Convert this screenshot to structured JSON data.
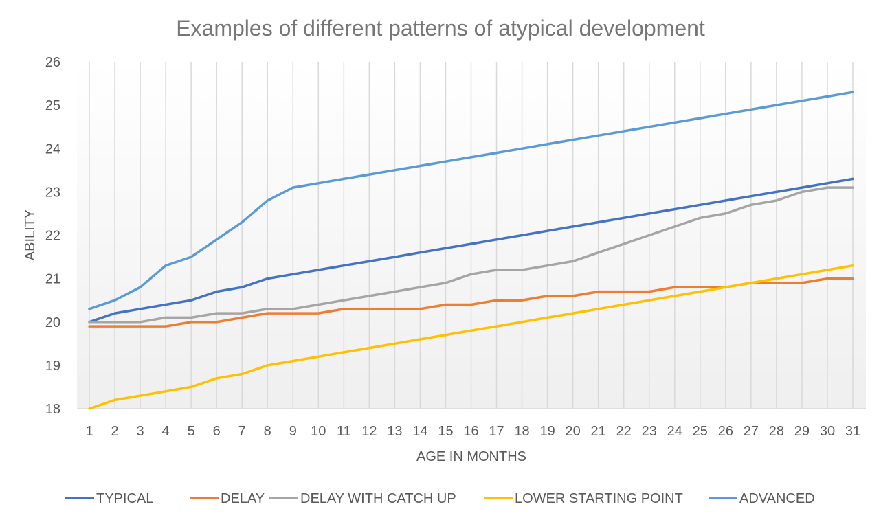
{
  "chart_data": {
    "type": "line",
    "title": "Examples of different patterns of atypical  development",
    "xlabel": "AGE IN MONTHS",
    "ylabel": "ABILITY",
    "ylim": [
      18,
      26
    ],
    "yticks": [
      18,
      19,
      20,
      21,
      22,
      23,
      24,
      25,
      26
    ],
    "x": [
      1,
      2,
      3,
      4,
      5,
      6,
      7,
      8,
      9,
      10,
      11,
      12,
      13,
      14,
      15,
      16,
      17,
      18,
      19,
      20,
      21,
      22,
      23,
      24,
      25,
      26,
      27,
      28,
      29,
      30,
      31
    ],
    "grid": "vertical",
    "legend_position": "bottom",
    "series": [
      {
        "name": "TYPICAL",
        "color": "#4472C4",
        "values": [
          20.0,
          20.2,
          20.3,
          20.4,
          20.5,
          20.7,
          20.8,
          21.0,
          21.1,
          21.2,
          21.3,
          21.4,
          21.5,
          21.6,
          21.7,
          21.8,
          21.9,
          22.0,
          22.1,
          22.2,
          22.3,
          22.4,
          22.5,
          22.6,
          22.7,
          22.8,
          22.9,
          23.0,
          23.1,
          23.2,
          23.3
        ]
      },
      {
        "name": "DELAY",
        "color": "#ED7D31",
        "values": [
          19.9,
          19.9,
          19.9,
          19.9,
          20.0,
          20.0,
          20.1,
          20.2,
          20.2,
          20.2,
          20.3,
          20.3,
          20.3,
          20.3,
          20.4,
          20.4,
          20.5,
          20.5,
          20.6,
          20.6,
          20.7,
          20.7,
          20.7,
          20.8,
          20.8,
          20.8,
          20.9,
          20.9,
          20.9,
          21.0,
          21.0
        ]
      },
      {
        "name": "DELAY WITH CATCH UP",
        "color": "#A5A5A5",
        "values": [
          20.0,
          20.0,
          20.0,
          20.1,
          20.1,
          20.2,
          20.2,
          20.3,
          20.3,
          20.4,
          20.5,
          20.6,
          20.7,
          20.8,
          20.9,
          21.1,
          21.2,
          21.2,
          21.3,
          21.4,
          21.6,
          21.8,
          22.0,
          22.2,
          22.4,
          22.5,
          22.7,
          22.8,
          23.0,
          23.1,
          23.1
        ]
      },
      {
        "name": "LOWER STARTING POINT",
        "color": "#FFC000",
        "values": [
          18.0,
          18.2,
          18.3,
          18.4,
          18.5,
          18.7,
          18.8,
          19.0,
          19.1,
          19.2,
          19.3,
          19.4,
          19.5,
          19.6,
          19.7,
          19.8,
          19.9,
          20.0,
          20.1,
          20.2,
          20.3,
          20.4,
          20.5,
          20.6,
          20.7,
          20.8,
          20.9,
          21.0,
          21.1,
          21.2,
          21.3
        ]
      },
      {
        "name": "ADVANCED",
        "color": "#5B9BD5",
        "values": [
          20.3,
          20.5,
          20.8,
          21.3,
          21.5,
          21.9,
          22.3,
          22.8,
          23.1,
          23.2,
          23.3,
          23.4,
          23.5,
          23.6,
          23.7,
          23.8,
          23.9,
          24.0,
          24.1,
          24.2,
          24.3,
          24.4,
          24.5,
          24.6,
          24.7,
          24.8,
          24.9,
          25.0,
          25.1,
          25.2,
          25.3
        ]
      }
    ]
  }
}
